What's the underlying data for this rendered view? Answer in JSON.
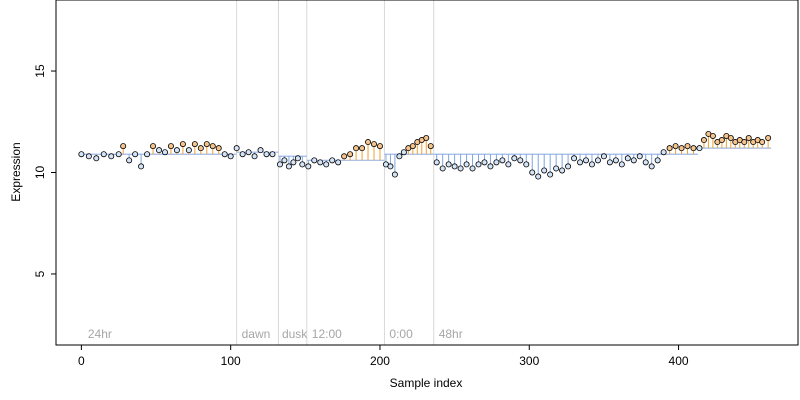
{
  "chart_data": {
    "type": "scatter",
    "xlabel": "Sample index",
    "ylabel": "Expression",
    "xlim": [
      -17,
      480
    ],
    "ylim": [
      1.5,
      18.5
    ],
    "x_ticks": [
      0,
      100,
      200,
      300,
      400
    ],
    "y_ticks": [
      5,
      10,
      15
    ],
    "baseline_color": "#9eb8e8",
    "colors": {
      "point_default": "#d4e4f7",
      "point_warm": "#f5c48c",
      "bar_low": "#7ea6e0",
      "bar_high": "#f0a030"
    },
    "annotations": [
      {
        "label": "24hr",
        "x": 3
      },
      {
        "label": "dawn",
        "x": 106
      },
      {
        "label": "dusk",
        "x": 133
      },
      {
        "label": "12:00",
        "x": 153
      },
      {
        "label": "0:00",
        "x": 205
      },
      {
        "label": "48hr",
        "x": 238
      }
    ],
    "vertical_lines": [
      104,
      132,
      151,
      203,
      236
    ],
    "segments": [
      {
        "x0": 0,
        "x1": 104,
        "level": 10.9,
        "points": [
          [
            0,
            10.9
          ],
          [
            5,
            10.8
          ],
          [
            10,
            10.7
          ],
          [
            15,
            10.9
          ],
          [
            20,
            10.8
          ],
          [
            25,
            10.9
          ],
          [
            28,
            11.3
          ],
          [
            32,
            10.6
          ],
          [
            36,
            10.9
          ],
          [
            40,
            10.3
          ],
          [
            44,
            10.9
          ],
          [
            48,
            11.3
          ],
          [
            52,
            11.1
          ],
          [
            56,
            11.0
          ],
          [
            60,
            11.3
          ],
          [
            64,
            11.1
          ],
          [
            68,
            11.4
          ],
          [
            72,
            11.1
          ],
          [
            76,
            11.4
          ],
          [
            80,
            11.2
          ],
          [
            84,
            11.4
          ],
          [
            88,
            11.3
          ],
          [
            92,
            11.2
          ],
          [
            96,
            10.9
          ],
          [
            100,
            10.8
          ]
        ]
      },
      {
        "x0": 104,
        "x1": 132,
        "level": 11.0,
        "points": [
          [
            104,
            11.2
          ],
          [
            108,
            10.9
          ],
          [
            112,
            11.0
          ],
          [
            116,
            10.8
          ],
          [
            120,
            11.1
          ],
          [
            124,
            10.9
          ],
          [
            128,
            10.9
          ]
        ]
      },
      {
        "x0": 132,
        "x1": 151,
        "level": 10.8,
        "points": [
          [
            133,
            10.4
          ],
          [
            136,
            10.6
          ],
          [
            139,
            10.3
          ],
          [
            142,
            10.5
          ],
          [
            145,
            10.7
          ],
          [
            148,
            10.4
          ]
        ]
      },
      {
        "x0": 151,
        "x1": 203,
        "level": 10.6,
        "points": [
          [
            152,
            10.3
          ],
          [
            156,
            10.6
          ],
          [
            160,
            10.5
          ],
          [
            164,
            10.4
          ],
          [
            168,
            10.6
          ],
          [
            172,
            10.5
          ],
          [
            176,
            10.8
          ],
          [
            180,
            10.9
          ],
          [
            184,
            11.2
          ],
          [
            188,
            11.2
          ],
          [
            192,
            11.5
          ],
          [
            196,
            11.4
          ],
          [
            200,
            11.3
          ]
        ]
      },
      {
        "x0": 203,
        "x1": 236,
        "level": 10.9,
        "points": [
          [
            204,
            10.4
          ],
          [
            207,
            10.3
          ],
          [
            210,
            9.9
          ],
          [
            213,
            10.8
          ],
          [
            216,
            11.0
          ],
          [
            219,
            11.2
          ],
          [
            222,
            11.3
          ],
          [
            225,
            11.5
          ],
          [
            228,
            11.6
          ],
          [
            231,
            11.7
          ],
          [
            234,
            11.3
          ]
        ]
      },
      {
        "x0": 236,
        "x1": 413,
        "level": 10.9,
        "points": [
          [
            238,
            10.5
          ],
          [
            242,
            10.2
          ],
          [
            246,
            10.4
          ],
          [
            250,
            10.3
          ],
          [
            254,
            10.2
          ],
          [
            258,
            10.4
          ],
          [
            262,
            10.2
          ],
          [
            266,
            10.4
          ],
          [
            270,
            10.5
          ],
          [
            274,
            10.3
          ],
          [
            278,
            10.5
          ],
          [
            282,
            10.6
          ],
          [
            286,
            10.4
          ],
          [
            290,
            10.7
          ],
          [
            294,
            10.6
          ],
          [
            298,
            10.4
          ],
          [
            302,
            10.0
          ],
          [
            306,
            9.8
          ],
          [
            310,
            10.1
          ],
          [
            314,
            9.9
          ],
          [
            318,
            10.2
          ],
          [
            322,
            10.1
          ],
          [
            326,
            10.3
          ],
          [
            330,
            10.7
          ],
          [
            334,
            10.5
          ],
          [
            338,
            10.6
          ],
          [
            342,
            10.4
          ],
          [
            346,
            10.6
          ],
          [
            350,
            10.8
          ],
          [
            354,
            10.5
          ],
          [
            358,
            10.6
          ],
          [
            362,
            10.4
          ],
          [
            366,
            10.7
          ],
          [
            370,
            10.6
          ],
          [
            374,
            10.8
          ],
          [
            378,
            10.5
          ],
          [
            382,
            10.3
          ],
          [
            386,
            10.6
          ],
          [
            390,
            11.0
          ],
          [
            394,
            11.2
          ],
          [
            398,
            11.3
          ],
          [
            402,
            11.2
          ],
          [
            406,
            11.3
          ],
          [
            410,
            11.2
          ]
        ]
      },
      {
        "x0": 413,
        "x1": 462,
        "level": 11.2,
        "points": [
          [
            414,
            11.2
          ],
          [
            417,
            11.6
          ],
          [
            420,
            11.9
          ],
          [
            423,
            11.8
          ],
          [
            426,
            11.5
          ],
          [
            429,
            11.6
          ],
          [
            432,
            11.8
          ],
          [
            435,
            11.7
          ],
          [
            438,
            11.5
          ],
          [
            441,
            11.6
          ],
          [
            444,
            11.5
          ],
          [
            447,
            11.7
          ],
          [
            450,
            11.5
          ],
          [
            453,
            11.6
          ],
          [
            456,
            11.5
          ],
          [
            460,
            11.7
          ]
        ]
      }
    ]
  }
}
